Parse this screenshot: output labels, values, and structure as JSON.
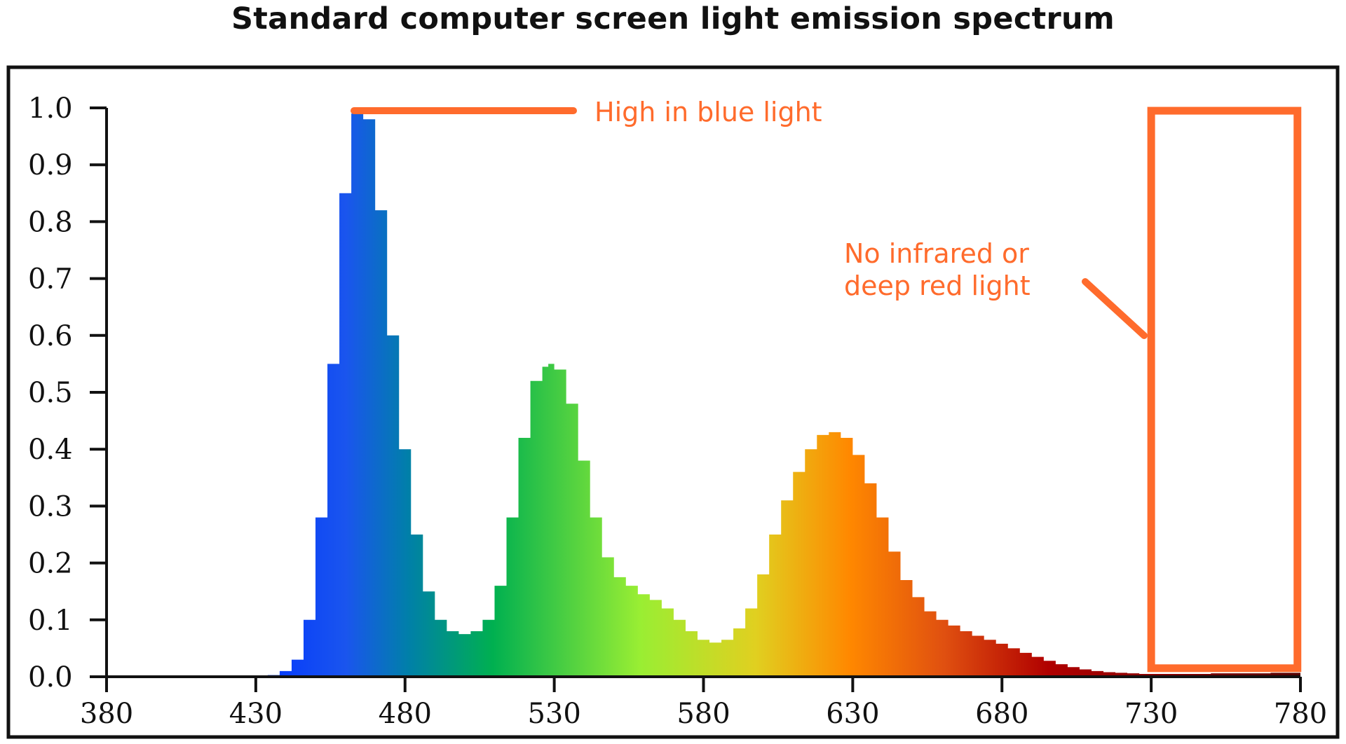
{
  "chart_data": {
    "type": "area",
    "title": "Standard computer screen light emission spectrum",
    "xlabel": "",
    "ylabel": "",
    "xlim": [
      380,
      780
    ],
    "ylim": [
      0,
      1.0
    ],
    "x_ticks": [
      "380",
      "430",
      "480",
      "530",
      "580",
      "630",
      "680",
      "730",
      "780"
    ],
    "y_ticks": [
      "0.0",
      "0.1",
      "0.2",
      "0.3",
      "0.4",
      "0.5",
      "0.6",
      "0.7",
      "0.8",
      "0.9",
      "1.0"
    ],
    "grid": false,
    "legend": "none",
    "series": [
      {
        "x": [
          380,
          430,
          434,
          438,
          442,
          446,
          450,
          454,
          458,
          462,
          464,
          466,
          470,
          474,
          478,
          482,
          486,
          490,
          494,
          498,
          502,
          506,
          510,
          514,
          518,
          522,
          526,
          528,
          530,
          534,
          538,
          542,
          546,
          550,
          554,
          558,
          562,
          566,
          570,
          574,
          578,
          582,
          586,
          590,
          594,
          598,
          602,
          606,
          610,
          614,
          618,
          622,
          626,
          630,
          634,
          638,
          642,
          646,
          650,
          654,
          658,
          662,
          666,
          670,
          674,
          678,
          682,
          686,
          690,
          694,
          698,
          702,
          706,
          710,
          714,
          718,
          722,
          726,
          730,
          740,
          750,
          760,
          770,
          780
        ],
        "values": [
          0,
          0,
          0.003,
          0.01,
          0.03,
          0.1,
          0.28,
          0.55,
          0.85,
          0.99,
          1.0,
          0.98,
          0.82,
          0.6,
          0.4,
          0.25,
          0.15,
          0.1,
          0.08,
          0.075,
          0.08,
          0.1,
          0.16,
          0.28,
          0.42,
          0.52,
          0.545,
          0.55,
          0.54,
          0.48,
          0.38,
          0.28,
          0.21,
          0.175,
          0.16,
          0.145,
          0.135,
          0.12,
          0.1,
          0.08,
          0.065,
          0.06,
          0.065,
          0.085,
          0.12,
          0.18,
          0.25,
          0.31,
          0.36,
          0.4,
          0.425,
          0.43,
          0.42,
          0.39,
          0.34,
          0.28,
          0.22,
          0.17,
          0.14,
          0.115,
          0.1,
          0.09,
          0.08,
          0.072,
          0.065,
          0.058,
          0.05,
          0.042,
          0.035,
          0.028,
          0.022,
          0.017,
          0.013,
          0.01,
          0.008,
          0.007,
          0.006,
          0.005,
          0.005,
          0.005,
          0.006,
          0.006,
          0.007,
          0.008
        ]
      }
    ],
    "annotations": [
      {
        "text": "High in blue light"
      },
      {
        "text_lines": [
          "No infrared or",
          "deep red light"
        ]
      }
    ],
    "colors": {
      "annotation": "#ff6b2c",
      "axis": "#111111",
      "frame": "#111111",
      "spectrum_stops": [
        "#0033ff",
        "#1a55ee",
        "#0080a8",
        "#00b050",
        "#99ee33",
        "#e0d020",
        "#ff8800",
        "#e05010",
        "#b00000",
        "#550000"
      ]
    }
  }
}
